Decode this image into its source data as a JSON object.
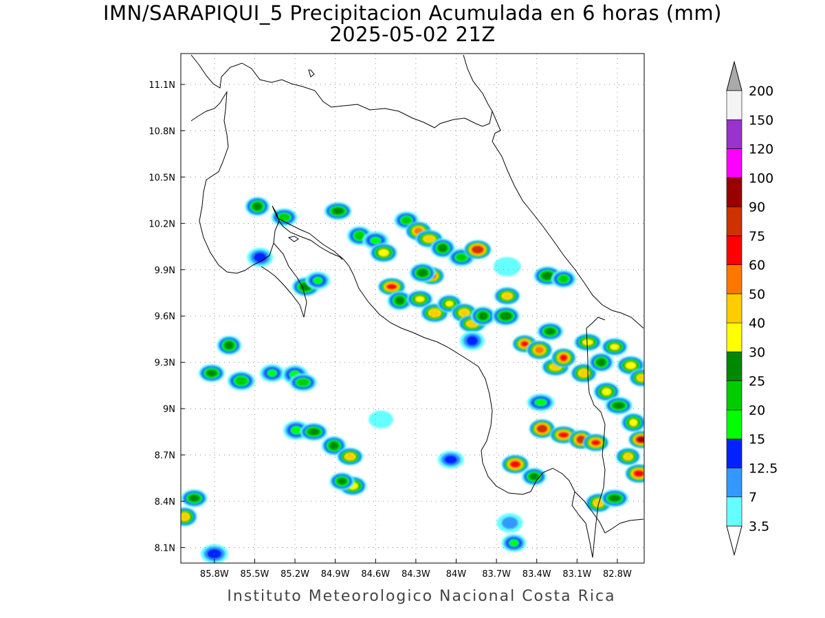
{
  "title_line1": "IMN/SARAPIQUI_5 Precipitacion Acumulada en 6 horas (mm)",
  "title_line2": "2025-05-02 21Z",
  "credit": "Instituto Meteorologico Nacional Costa Rica",
  "map": {
    "lon_range": [
      -86.05,
      -82.6
    ],
    "lat_range": [
      8.0,
      11.3
    ],
    "lon_ticks": [
      {
        "value": -85.8,
        "label": "85.8W"
      },
      {
        "value": -85.5,
        "label": "85.5W"
      },
      {
        "value": -85.2,
        "label": "85.2W"
      },
      {
        "value": -84.9,
        "label": "84.9W"
      },
      {
        "value": -84.6,
        "label": "84.6W"
      },
      {
        "value": -84.3,
        "label": "84.3W"
      },
      {
        "value": -84.0,
        "label": "84W"
      },
      {
        "value": -83.7,
        "label": "83.7W"
      },
      {
        "value": -83.4,
        "label": "83.4W"
      },
      {
        "value": -83.1,
        "label": "83.1W"
      },
      {
        "value": -82.8,
        "label": "82.8W"
      }
    ],
    "lat_ticks": [
      {
        "value": 11.1,
        "label": "11.1N"
      },
      {
        "value": 10.8,
        "label": "10.8N"
      },
      {
        "value": 10.5,
        "label": "10.5N"
      },
      {
        "value": 10.2,
        "label": "10.2N"
      },
      {
        "value": 9.9,
        "label": "9.9N"
      },
      {
        "value": 9.6,
        "label": "9.6N"
      },
      {
        "value": 9.3,
        "label": "9.3N"
      },
      {
        "value": 9.0,
        "label": "9N"
      },
      {
        "value": 8.7,
        "label": "8.7N"
      },
      {
        "value": 8.4,
        "label": "8.4N"
      },
      {
        "value": 8.1,
        "label": "8.1N"
      }
    ],
    "grid": "dotted"
  },
  "colorbar": {
    "levels": [
      "3.5",
      "7",
      "12.5",
      "15",
      "20",
      "25",
      "30",
      "40",
      "50",
      "60",
      "75",
      "90",
      "100",
      "120",
      "150",
      "200"
    ],
    "colors": [
      "#66ffff",
      "#3399ff",
      "#0022ff",
      "#00ff00",
      "#00cc00",
      "#008800",
      "#ffff00",
      "#ffcc00",
      "#ff7700",
      "#ff0000",
      "#cc3300",
      "#990000",
      "#ff00ff",
      "#9933cc",
      "#f4f4f4"
    ],
    "over_color": "#aaaaaa",
    "under_color": "#ffffff"
  },
  "precip_cells": [
    {
      "lon": -85.69,
      "lat": 9.41,
      "peak": 25
    },
    {
      "lon": -85.82,
      "lat": 9.23,
      "peak": 25
    },
    {
      "lon": -85.6,
      "lat": 9.18,
      "peak": 20
    },
    {
      "lon": -85.37,
      "lat": 9.23,
      "peak": 15
    },
    {
      "lon": -85.2,
      "lat": 9.22,
      "peak": 15
    },
    {
      "lon": -85.14,
      "lat": 9.17,
      "peak": 20
    },
    {
      "lon": -85.48,
      "lat": 10.31,
      "peak": 25
    },
    {
      "lon": -85.28,
      "lat": 10.24,
      "peak": 20
    },
    {
      "lon": -85.12,
      "lat": 9.79,
      "peak": 25
    },
    {
      "lon": -85.03,
      "lat": 9.83,
      "peak": 15
    },
    {
      "lon": -85.46,
      "lat": 9.98,
      "peak": 12.5
    },
    {
      "lon": -84.88,
      "lat": 10.28,
      "peak": 25
    },
    {
      "lon": -84.72,
      "lat": 10.12,
      "peak": 20
    },
    {
      "lon": -84.6,
      "lat": 10.09,
      "peak": 15
    },
    {
      "lon": -84.54,
      "lat": 10.01,
      "peak": 30
    },
    {
      "lon": -84.37,
      "lat": 10.22,
      "peak": 20
    },
    {
      "lon": -84.28,
      "lat": 10.15,
      "peak": 50
    },
    {
      "lon": -84.2,
      "lat": 10.1,
      "peak": 40
    },
    {
      "lon": -84.1,
      "lat": 10.04,
      "peak": 25
    },
    {
      "lon": -83.96,
      "lat": 9.98,
      "peak": 20
    },
    {
      "lon": -83.84,
      "lat": 10.03,
      "peak": 75
    },
    {
      "lon": -84.18,
      "lat": 9.86,
      "peak": 60
    },
    {
      "lon": -84.25,
      "lat": 9.88,
      "peak": 25
    },
    {
      "lon": -84.48,
      "lat": 9.79,
      "peak": 60
    },
    {
      "lon": -84.42,
      "lat": 9.7,
      "peak": 25
    },
    {
      "lon": -84.27,
      "lat": 9.71,
      "peak": 30
    },
    {
      "lon": -84.16,
      "lat": 9.62,
      "peak": 40
    },
    {
      "lon": -84.05,
      "lat": 9.68,
      "peak": 30
    },
    {
      "lon": -83.94,
      "lat": 9.62,
      "peak": 40
    },
    {
      "lon": -83.88,
      "lat": 9.55,
      "peak": 40
    },
    {
      "lon": -83.8,
      "lat": 9.6,
      "peak": 25
    },
    {
      "lon": -83.62,
      "lat": 9.73,
      "peak": 40
    },
    {
      "lon": -83.63,
      "lat": 9.6,
      "peak": 25
    },
    {
      "lon": -83.49,
      "lat": 9.42,
      "peak": 60
    },
    {
      "lon": -83.38,
      "lat": 9.38,
      "peak": 50
    },
    {
      "lon": -83.26,
      "lat": 9.27,
      "peak": 40
    },
    {
      "lon": -83.2,
      "lat": 9.33,
      "peak": 60
    },
    {
      "lon": -83.3,
      "lat": 9.5,
      "peak": 25
    },
    {
      "lon": -83.32,
      "lat": 9.86,
      "peak": 25
    },
    {
      "lon": -83.2,
      "lat": 9.84,
      "peak": 20
    },
    {
      "lon": -83.05,
      "lat": 9.23,
      "peak": 40
    },
    {
      "lon": -83.02,
      "lat": 9.43,
      "peak": 30
    },
    {
      "lon": -82.92,
      "lat": 9.3,
      "peak": 25
    },
    {
      "lon": -82.82,
      "lat": 9.4,
      "peak": 30
    },
    {
      "lon": -82.7,
      "lat": 9.28,
      "peak": 30
    },
    {
      "lon": -82.62,
      "lat": 9.2,
      "peak": 40
    },
    {
      "lon": -82.88,
      "lat": 9.11,
      "peak": 30
    },
    {
      "lon": -82.79,
      "lat": 9.02,
      "peak": 25
    },
    {
      "lon": -82.68,
      "lat": 8.91,
      "peak": 30
    },
    {
      "lon": -82.62,
      "lat": 8.8,
      "peak": 90
    },
    {
      "lon": -82.64,
      "lat": 8.58,
      "peak": 60
    },
    {
      "lon": -82.72,
      "lat": 8.69,
      "peak": 40
    },
    {
      "lon": -83.36,
      "lat": 8.87,
      "peak": 75
    },
    {
      "lon": -83.2,
      "lat": 8.83,
      "peak": 60
    },
    {
      "lon": -83.07,
      "lat": 8.8,
      "peak": 75
    },
    {
      "lon": -82.96,
      "lat": 8.78,
      "peak": 60
    },
    {
      "lon": -83.56,
      "lat": 8.64,
      "peak": 60
    },
    {
      "lon": -83.42,
      "lat": 8.56,
      "peak": 25
    },
    {
      "lon": -82.94,
      "lat": 8.39,
      "peak": 40
    },
    {
      "lon": -82.82,
      "lat": 8.42,
      "peak": 25
    },
    {
      "lon": -84.91,
      "lat": 8.76,
      "peak": 25
    },
    {
      "lon": -84.79,
      "lat": 8.69,
      "peak": 40
    },
    {
      "lon": -84.77,
      "lat": 8.5,
      "peak": 30
    },
    {
      "lon": -84.85,
      "lat": 8.53,
      "peak": 25
    },
    {
      "lon": -85.19,
      "lat": 8.86,
      "peak": 15
    },
    {
      "lon": -85.06,
      "lat": 8.85,
      "peak": 25
    },
    {
      "lon": -86.02,
      "lat": 8.3,
      "peak": 40
    },
    {
      "lon": -85.95,
      "lat": 8.42,
      "peak": 25
    },
    {
      "lon": -85.8,
      "lat": 8.06,
      "peak": 12.5
    },
    {
      "lon": -83.57,
      "lat": 8.13,
      "peak": 15
    },
    {
      "lon": -83.6,
      "lat": 8.26,
      "peak": 7
    },
    {
      "lon": -83.37,
      "lat": 9.04,
      "peak": 15
    },
    {
      "lon": -83.88,
      "lat": 9.44,
      "peak": 12.5
    },
    {
      "lon": -84.04,
      "lat": 8.67,
      "peak": 12.5
    },
    {
      "lon": -83.62,
      "lat": 9.92,
      "peak": 3.5
    },
    {
      "lon": -84.56,
      "lat": 8.93,
      "peak": 3.5
    }
  ]
}
